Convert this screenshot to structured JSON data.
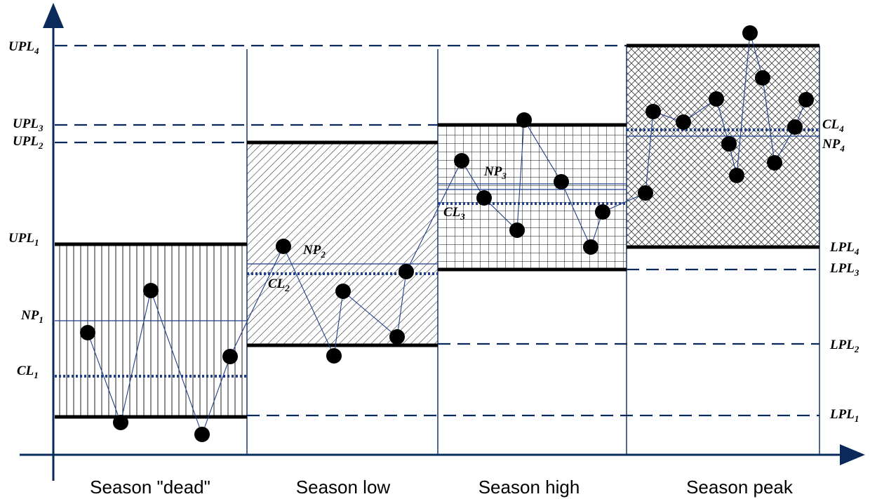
{
  "seasons": [
    {
      "name": "Season \"dead\"",
      "pattern": "vertical-lines"
    },
    {
      "name": "Season low",
      "pattern": "diagonal-hatch"
    },
    {
      "name": "Season high",
      "pattern": "grid"
    },
    {
      "name": "Season peak",
      "pattern": "cross-hatch"
    }
  ],
  "limits": {
    "upl": [
      {
        "base": "UPL",
        "sub": "1"
      },
      {
        "base": "UPL",
        "sub": "2"
      },
      {
        "base": "UPL",
        "sub": "3"
      },
      {
        "base": "UPL",
        "sub": "4"
      }
    ],
    "lpl": [
      {
        "base": "LPL",
        "sub": "1"
      },
      {
        "base": "LPL",
        "sub": "2"
      },
      {
        "base": "LPL",
        "sub": "3"
      },
      {
        "base": "LPL",
        "sub": "4"
      }
    ],
    "cl": [
      {
        "base": "CL",
        "sub": "1"
      },
      {
        "base": "CL",
        "sub": "2"
      },
      {
        "base": "CL",
        "sub": "3"
      },
      {
        "base": "CL",
        "sub": "4"
      }
    ],
    "np": [
      {
        "base": "NP",
        "sub": "1"
      },
      {
        "base": "NP",
        "sub": "2"
      },
      {
        "base": "NP",
        "sub": "3"
      },
      {
        "base": "NP",
        "sub": "4"
      }
    ]
  },
  "colors": {
    "axis": "#0b2a5c",
    "dashed_line": "#0b2a5c",
    "center_line": "#1f3f8a",
    "band_border": "#000000",
    "point": "#000000"
  }
}
